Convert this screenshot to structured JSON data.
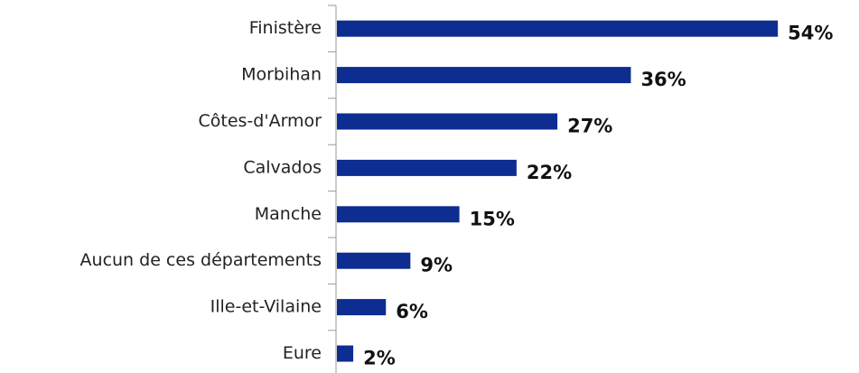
{
  "chart_data": {
    "type": "bar",
    "orientation": "horizontal",
    "categories": [
      "Finistère",
      "Morbihan",
      "Côtes-d'Armor",
      "Calvados",
      "Manche",
      "Aucun de ces départements",
      "Ille-et-Vilaine",
      "Eure"
    ],
    "values": [
      54,
      36,
      27,
      22,
      15,
      9,
      6,
      2
    ],
    "value_labels": [
      "54%",
      "36%",
      "27%",
      "22%",
      "15%",
      "9%",
      "6%",
      "2%"
    ],
    "color": "#0d2d91"
  }
}
